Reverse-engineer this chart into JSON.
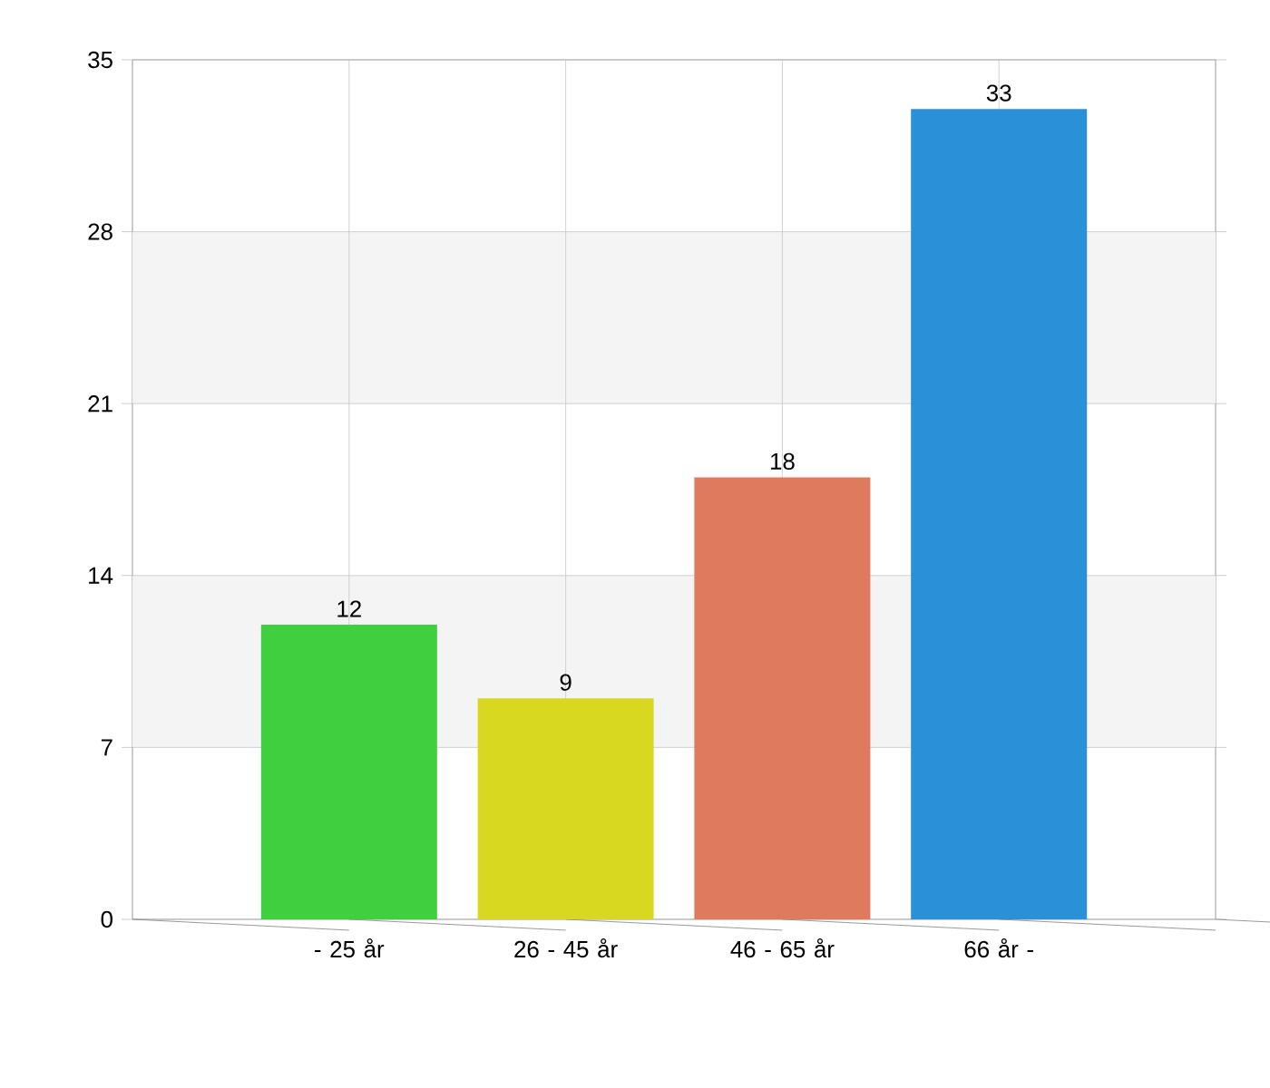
{
  "chart_data": {
    "type": "bar",
    "categories": [
      "- 25 år",
      "26 - 45 år",
      "46 - 65 år",
      "66 år -"
    ],
    "values": [
      12,
      9,
      18,
      33
    ],
    "colors": [
      "#3fcf3f",
      "#d8d820",
      "#e07a5c",
      "#2a90d8"
    ],
    "ylim": [
      0,
      35
    ],
    "yticks": [
      0,
      7,
      14,
      21,
      28,
      35
    ],
    "grid": true,
    "data_labels": true,
    "bands": [
      {
        "axis": "y",
        "from": 7,
        "to": 14,
        "color": "#f4f4f4"
      },
      {
        "axis": "y",
        "from": 21,
        "to": 28,
        "color": "#f4f4f4"
      }
    ]
  }
}
